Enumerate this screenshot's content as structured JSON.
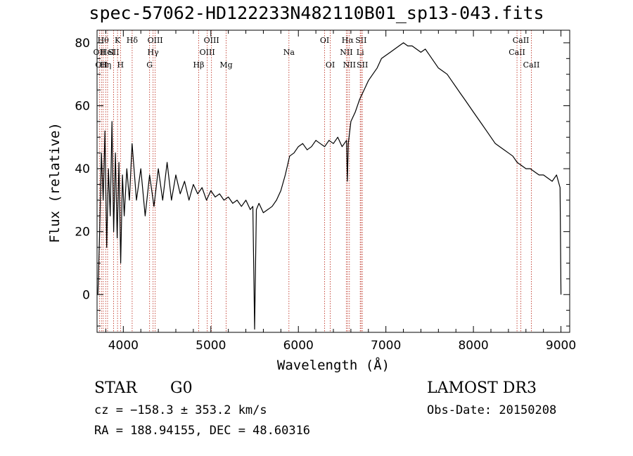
{
  "chart_data": {
    "type": "line",
    "title": "spec-57062-HD122233N482110B01_sp13-043.fits",
    "xlabel": "Wavelength (Å)",
    "ylabel": "Flux (relative)",
    "xlim": [
      3700,
      9100
    ],
    "ylim": [
      -12,
      84
    ],
    "xticks": [
      4000,
      5000,
      6000,
      7000,
      8000,
      9000
    ],
    "yticks": [
      0,
      20,
      40,
      60,
      80
    ],
    "grid": false,
    "series": [
      {
        "name": "flux",
        "x": [
          3710,
          3730,
          3750,
          3770,
          3790,
          3810,
          3830,
          3850,
          3870,
          3890,
          3910,
          3930,
          3950,
          3970,
          3990,
          4010,
          4040,
          4070,
          4100,
          4150,
          4200,
          4250,
          4300,
          4350,
          4400,
          4450,
          4500,
          4550,
          4600,
          4650,
          4700,
          4750,
          4800,
          4850,
          4900,
          4950,
          5000,
          5050,
          5100,
          5150,
          5200,
          5250,
          5300,
          5350,
          5400,
          5450,
          5480,
          5500,
          5520,
          5550,
          5600,
          5650,
          5700,
          5750,
          5800,
          5850,
          5900,
          5950,
          6000,
          6050,
          6100,
          6150,
          6200,
          6250,
          6300,
          6350,
          6400,
          6450,
          6500,
          6550,
          6560,
          6570,
          6600,
          6650,
          6700,
          6750,
          6800,
          6850,
          6900,
          6950,
          7000,
          7050,
          7100,
          7150,
          7200,
          7250,
          7300,
          7350,
          7400,
          7450,
          7500,
          7550,
          7600,
          7650,
          7700,
          7750,
          7800,
          7850,
          7900,
          7950,
          8000,
          8050,
          8100,
          8150,
          8200,
          8250,
          8300,
          8350,
          8400,
          8450,
          8500,
          8550,
          8600,
          8650,
          8700,
          8750,
          8800,
          8850,
          8900,
          8950,
          8990,
          9000
        ],
        "y": [
          0,
          20,
          45,
          30,
          52,
          15,
          40,
          25,
          55,
          20,
          45,
          18,
          42,
          10,
          38,
          25,
          40,
          30,
          48,
          30,
          40,
          25,
          38,
          28,
          40,
          30,
          42,
          30,
          38,
          32,
          36,
          30,
          35,
          32,
          34,
          30,
          33,
          31,
          32,
          30,
          31,
          29,
          30,
          28,
          30,
          27,
          28,
          -11,
          27,
          29,
          26,
          27,
          28,
          30,
          33,
          38,
          44,
          45,
          47,
          48,
          46,
          47,
          49,
          48,
          47,
          49,
          48,
          50,
          47,
          49,
          36,
          48,
          55,
          58,
          62,
          65,
          68,
          70,
          72,
          75,
          76,
          77,
          78,
          79,
          80,
          79,
          79,
          78,
          77,
          78,
          76,
          74,
          72,
          71,
          70,
          68,
          66,
          64,
          62,
          60,
          58,
          56,
          54,
          52,
          50,
          48,
          47,
          46,
          45,
          44,
          42,
          41,
          40,
          40,
          39,
          38,
          38,
          37,
          36,
          38,
          34,
          0
        ]
      }
    ],
    "line_markers": [
      {
        "x": 3727,
        "label": "OII",
        "row": 2
      },
      {
        "x": 3750,
        "label": "OII",
        "row": 3
      },
      {
        "x": 3770,
        "label": "Hθ",
        "row": 1
      },
      {
        "x": 3798,
        "label": "Hη",
        "row": 3
      },
      {
        "x": 3820,
        "label": "HeI",
        "row": 2
      },
      {
        "x": 3889,
        "label": "SII",
        "row": 2
      },
      {
        "x": 3934,
        "label": "K",
        "row": 1
      },
      {
        "x": 3968,
        "label": "H",
        "row": 3
      },
      {
        "x": 4101,
        "label": "Hδ",
        "row": 1
      },
      {
        "x": 4300,
        "label": "G",
        "row": 3
      },
      {
        "x": 4340,
        "label": "Hγ",
        "row": 2
      },
      {
        "x": 4364,
        "label": "OIII",
        "row": 1
      },
      {
        "x": 4861,
        "label": "Hβ",
        "row": 3
      },
      {
        "x": 4959,
        "label": "OIII",
        "row": 2
      },
      {
        "x": 5007,
        "label": "OIII",
        "row": 1
      },
      {
        "x": 5175,
        "label": "Mg",
        "row": 3
      },
      {
        "x": 5892,
        "label": "Na",
        "row": 2
      },
      {
        "x": 6300,
        "label": "OI",
        "row": 1
      },
      {
        "x": 6364,
        "label": "OI",
        "row": 3
      },
      {
        "x": 6548,
        "label": "NII",
        "row": 2
      },
      {
        "x": 6563,
        "label": "Hα",
        "row": 1
      },
      {
        "x": 6583,
        "label": "NII",
        "row": 3
      },
      {
        "x": 6707,
        "label": "Li",
        "row": 2
      },
      {
        "x": 6716,
        "label": "SII",
        "row": 1
      },
      {
        "x": 6731,
        "label": "SII",
        "row": 3
      },
      {
        "x": 8498,
        "label": "CaII",
        "row": 2
      },
      {
        "x": 8542,
        "label": "CaII",
        "row": 1
      },
      {
        "x": 8662,
        "label": "CaII",
        "row": 3
      }
    ]
  },
  "info": {
    "object_class": "STAR",
    "spectral_type": "G0",
    "survey": "LAMOST DR3",
    "redshift_line": "cz = −158.3 ± 353.2 km/s",
    "obs_date_line": "Obs-Date: 20150208",
    "coords_line": "RA = 188.94155, DEC =  48.60316"
  }
}
